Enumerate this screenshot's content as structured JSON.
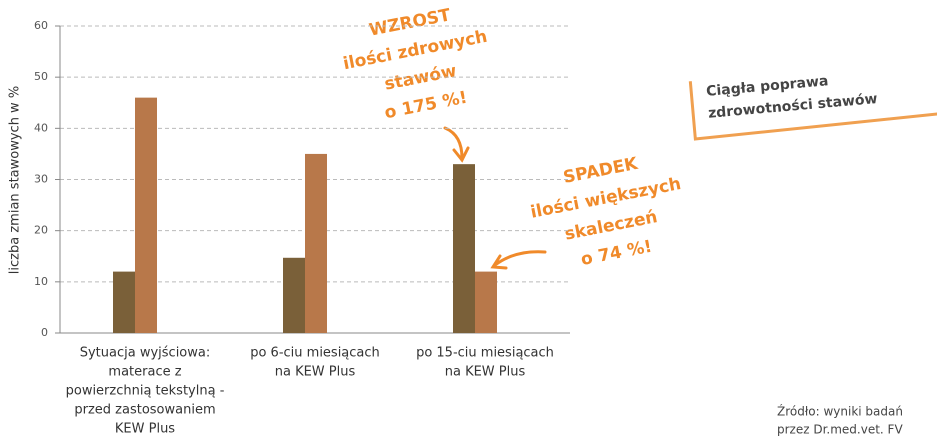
{
  "chart_data": {
    "type": "bar",
    "ylabel": "liczba zmian stawowych w %",
    "categories": [
      [
        "Sytuacja wyjściowa:",
        "materace z",
        "powierzchnią tekstylną -",
        "przed zastosowaniem",
        "KEW Plus"
      ],
      [
        "po 6-ciu miesiącach",
        "na KEW Plus"
      ],
      [
        "po 15-ciu miesiącach",
        "na KEW Plus"
      ]
    ],
    "series": [
      {
        "color": "#7a6039",
        "values": [
          12,
          14.7,
          33
        ]
      },
      {
        "color": "#b8784a",
        "values": [
          46,
          35,
          12
        ]
      }
    ],
    "ylim": [
      0,
      60
    ],
    "yticks": [
      0,
      10,
      20,
      30,
      40,
      50,
      60
    ],
    "grid": true,
    "annotations": [
      [
        "WZROST",
        "ilości zdrowych",
        "stawów",
        "o 175 %!"
      ],
      [
        "SPADEK",
        "ilości większych",
        "skaleczeń",
        "o 74 %!"
      ]
    ],
    "callout": [
      "Ciągła poprawa",
      "zdrowotności stawów"
    ],
    "source": [
      "Źródło: wyniki badań",
      "przez Dr.med.vet. FV"
    ]
  }
}
